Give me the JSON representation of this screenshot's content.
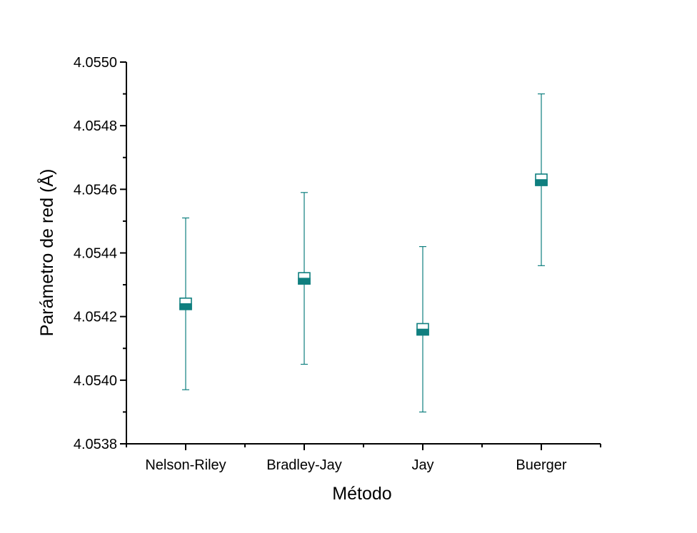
{
  "chart_data": {
    "type": "scatter",
    "xlabel": "Método",
    "ylabel": "Parámetro de red (Å)",
    "categories": [
      "Nelson-Riley",
      "Bradley-Jay",
      "Jay",
      "Buerger"
    ],
    "values": [
      4.05424,
      4.05432,
      4.05416,
      4.05463
    ],
    "error_low": [
      4.05397,
      4.05405,
      4.0539,
      4.05436
    ],
    "error_high": [
      4.05451,
      4.05459,
      4.05442,
      4.0549
    ],
    "ylim": [
      4.0538,
      4.055
    ],
    "yticks": [
      "4.0538",
      "4.0540",
      "4.0542",
      "4.0544",
      "4.0546",
      "4.0548",
      "4.0550"
    ],
    "grid": false,
    "legend": "none",
    "colors": {
      "marker": "#0f7f7f",
      "axis": "#000000"
    }
  }
}
